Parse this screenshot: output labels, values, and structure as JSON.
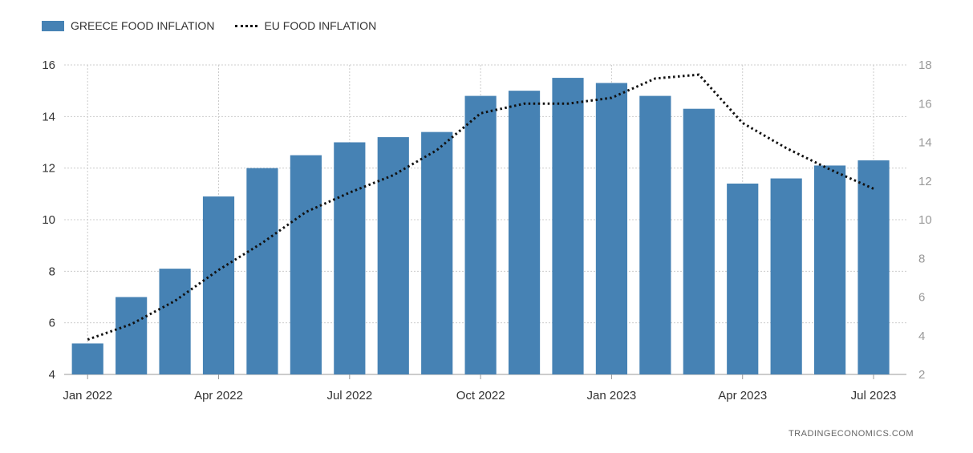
{
  "legend": {
    "greece_label": "GREECE FOOD INFLATION",
    "eu_label": "EU FOOD INFLATION"
  },
  "source": "TRADINGECONOMICS.COM",
  "colors": {
    "bar": "#4682b4",
    "line": "#111111",
    "grid": "#cccccc"
  },
  "chart_data": {
    "type": "bar",
    "grid": true,
    "legend_position": "top-left",
    "x_tick_labels": [
      "Jan 2022",
      "Apr 2022",
      "Jul 2022",
      "Oct 2022",
      "Jan 2023",
      "Apr 2023",
      "Jul 2023"
    ],
    "left_axis": {
      "range": [
        4,
        16
      ],
      "ticks": [
        4,
        6,
        8,
        10,
        12,
        14,
        16
      ]
    },
    "right_axis": {
      "range": [
        2,
        18
      ],
      "ticks": [
        2,
        4,
        6,
        8,
        10,
        12,
        14,
        16,
        18
      ]
    },
    "categories": [
      "2022-01",
      "2022-02",
      "2022-03",
      "2022-04",
      "2022-05",
      "2022-06",
      "2022-07",
      "2022-08",
      "2022-09",
      "2022-10",
      "2022-11",
      "2022-12",
      "2023-01",
      "2023-02",
      "2023-03",
      "2023-04",
      "2023-05",
      "2023-06",
      "2023-07"
    ],
    "series": [
      {
        "name": "GREECE FOOD INFLATION",
        "type": "bar",
        "axis": "left",
        "values": [
          5.2,
          7.0,
          8.1,
          10.9,
          12.0,
          12.5,
          13.0,
          13.2,
          13.4,
          14.8,
          15.0,
          15.5,
          15.3,
          14.8,
          14.3,
          11.4,
          11.6,
          12.1,
          12.3
        ]
      },
      {
        "name": "EU FOOD INFLATION",
        "type": "line",
        "axis": "right",
        "style": "dotted",
        "values": [
          3.8,
          4.6,
          5.8,
          7.4,
          8.8,
          10.4,
          11.4,
          12.3,
          13.6,
          15.5,
          16.0,
          16.0,
          16.3,
          17.3,
          17.5,
          15.0,
          13.7,
          12.6,
          11.6
        ]
      }
    ]
  }
}
